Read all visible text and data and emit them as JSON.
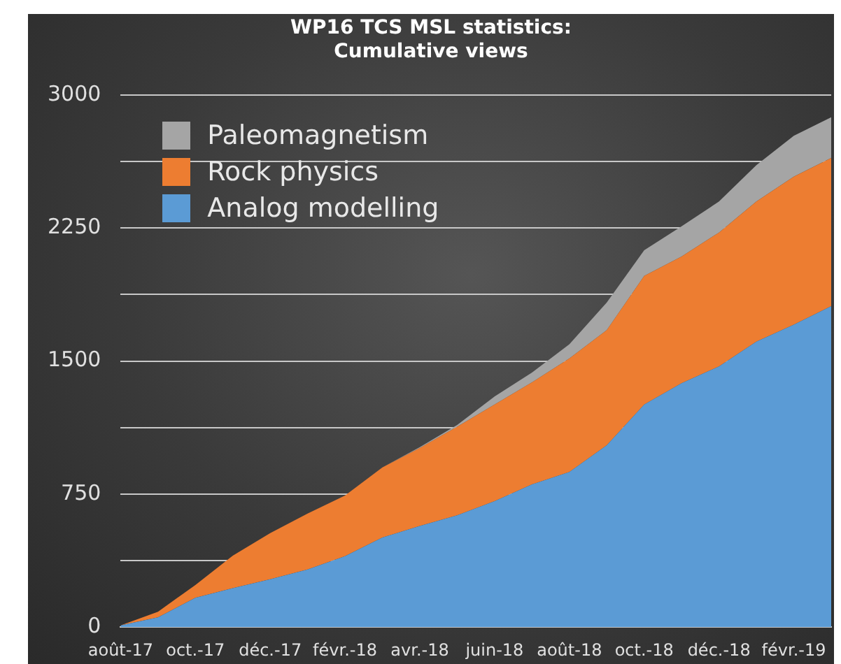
{
  "chart_data": {
    "type": "area",
    "title": "WP16 TCS MSL statistics:\nCumulative views",
    "stacked": true,
    "categories": [
      "août-17",
      null,
      "oct.-17",
      null,
      "déc.-17",
      null,
      "févr.-18",
      null,
      "avr.-18",
      null,
      "juin-18",
      null,
      "août-18",
      null,
      "oct.-18",
      null,
      "déc.-18",
      null,
      "févr.-19",
      null
    ],
    "series": [
      {
        "name": "Analog modelling",
        "color": "#5b9bd5",
        "values": [
          10,
          55,
          165,
          220,
          270,
          325,
          400,
          505,
          570,
          630,
          710,
          805,
          875,
          1025,
          1255,
          1375,
          1470,
          1610,
          1705,
          1810
        ]
      },
      {
        "name": "Rock physics",
        "color": "#ed7d31",
        "values": [
          0,
          32,
          72,
          183,
          260,
          315,
          342,
          395,
          440,
          500,
          545,
          575,
          640,
          650,
          725,
          715,
          755,
          790,
          835,
          835
        ]
      },
      {
        "name": "Paleomagnetism",
        "color": "#a5a5a5",
        "values": [
          0,
          0,
          0,
          0,
          0,
          0,
          0,
          0,
          5,
          10,
          45,
          55,
          80,
          155,
          145,
          170,
          175,
          205,
          230,
          230
        ]
      }
    ],
    "ylim": [
      0,
      3000
    ],
    "yticks": [
      0,
      {
        "value": 375,
        "label": null
      },
      750,
      {
        "value": 1125,
        "label": null
      },
      1500,
      {
        "value": 1875,
        "label": null
      },
      2250,
      {
        "value": 2625,
        "label": null
      },
      3000
    ],
    "grid": "y",
    "legend": "top left"
  }
}
